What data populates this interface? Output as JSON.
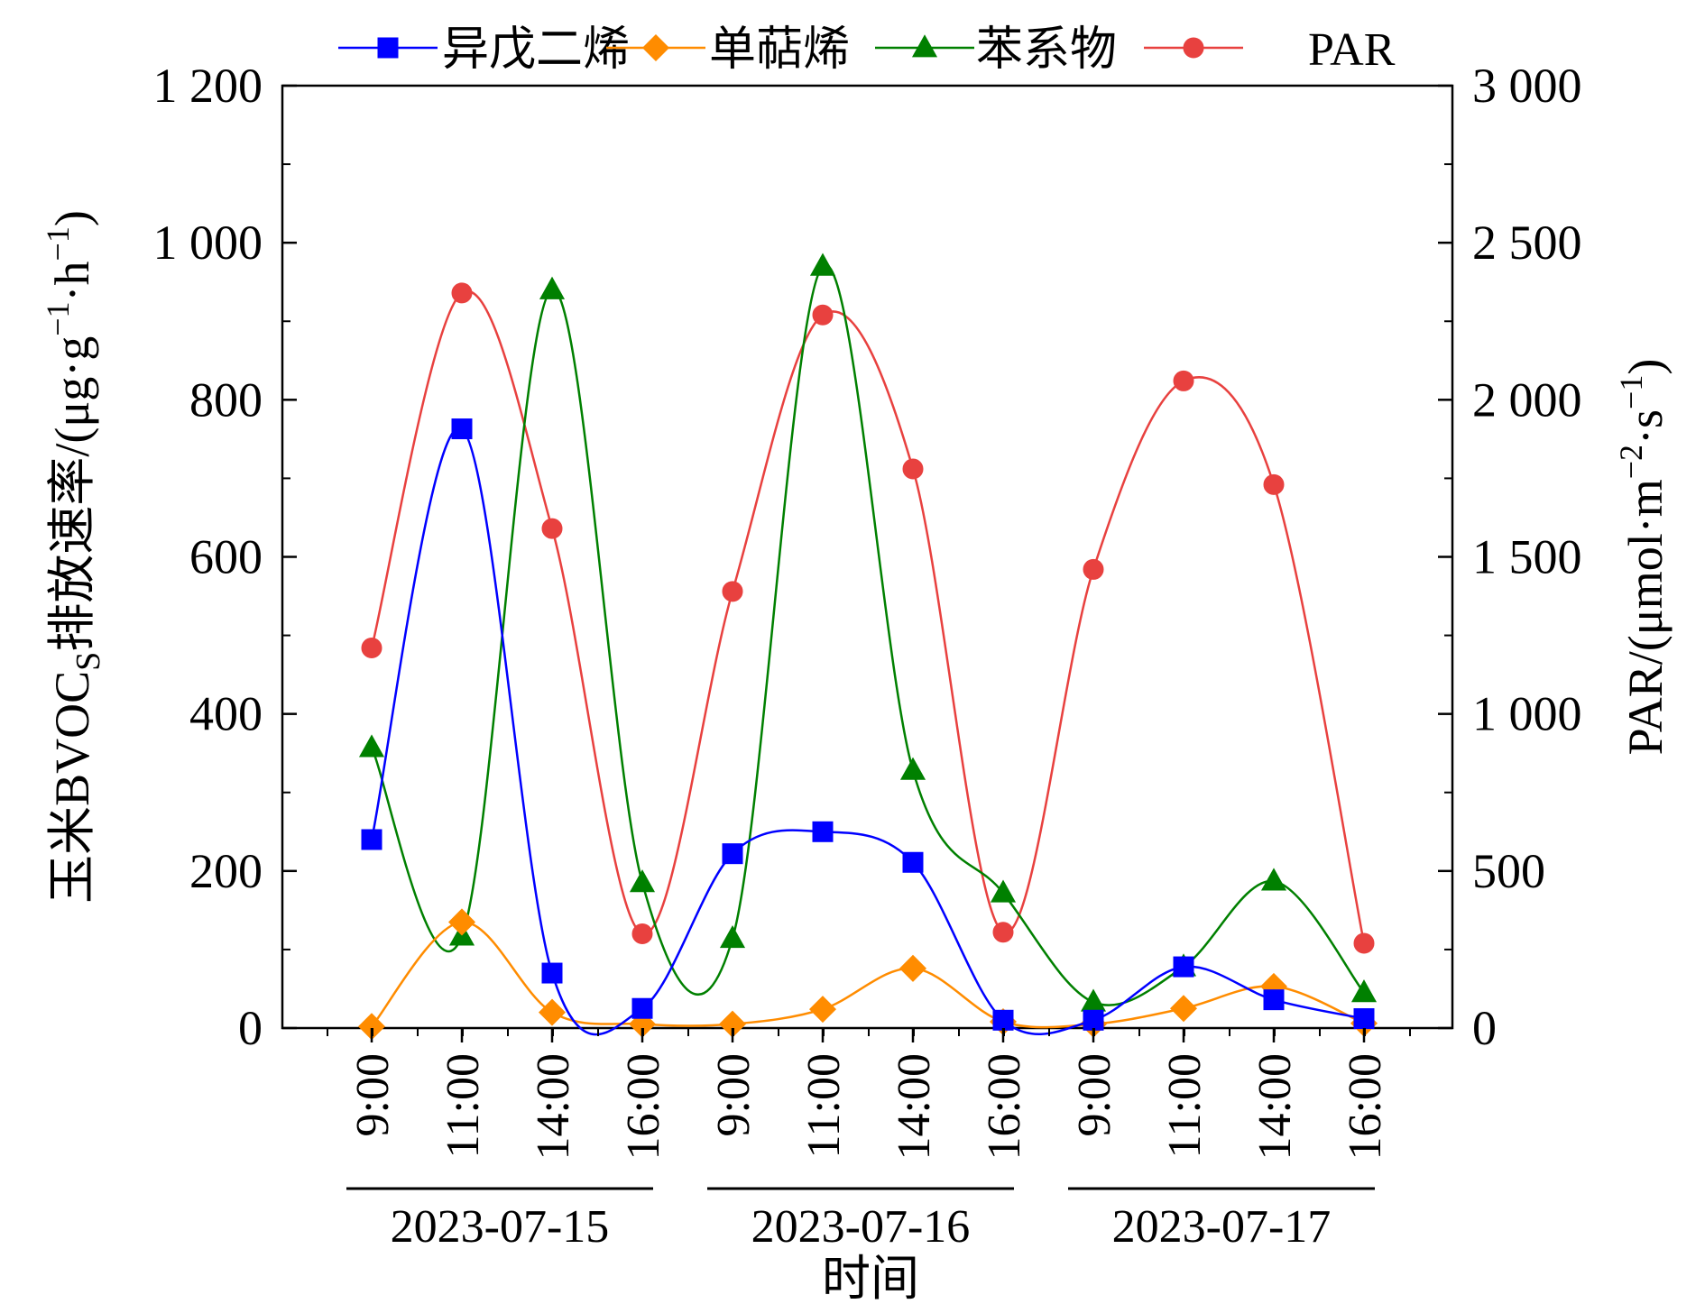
{
  "chart_data": {
    "type": "line",
    "legend_position": "top",
    "grid": false,
    "x_categories": [
      "9:00",
      "11:00",
      "14:00",
      "16:00",
      "9:00",
      "11:00",
      "14:00",
      "16:00",
      "9:00",
      "11:00",
      "14:00",
      "16:00"
    ],
    "date_groups": [
      {
        "label": "2023-07-15",
        "start": 0,
        "end": 3
      },
      {
        "label": "2023-07-16",
        "start": 4,
        "end": 7
      },
      {
        "label": "2023-07-17",
        "start": 8,
        "end": 11
      }
    ],
    "x_title": "时间",
    "y_left": {
      "title": "玉米BVOCs排放速率/(μg·g⁻¹·h⁻¹)",
      "title_parts": {
        "main": "玉米BVOC",
        "sub": "S",
        "rest": "排放速率/(μg·g",
        "sup1": "−1",
        "mid": "·h",
        "sup2": "−1",
        "end": ")"
      },
      "range": [
        0,
        1200
      ],
      "ticks": [
        0,
        200,
        400,
        600,
        800,
        1000,
        1200
      ],
      "tick_labels": [
        "0",
        "200",
        "400",
        "600",
        "800",
        "1 000",
        "1 200"
      ]
    },
    "y_right": {
      "title": "PAR/(μmol·m⁻²·s⁻¹)",
      "title_parts": {
        "main": "PAR/(μmol·m",
        "sup1": "−2",
        "mid": "·s",
        "sup2": "−1",
        "end": ")"
      },
      "range": [
        0,
        3000
      ],
      "ticks": [
        0,
        500,
        1000,
        1500,
        2000,
        2500,
        3000
      ],
      "tick_labels": [
        "0",
        "500",
        "1 000",
        "1 500",
        "2 000",
        "2 500",
        "3 000"
      ]
    },
    "series": [
      {
        "name": "异戊二烯",
        "axis": "left",
        "color": "#0000ff",
        "marker": "square",
        "values": [
          240,
          763,
          70,
          25,
          222,
          250,
          211,
          10,
          10,
          78,
          36,
          12
        ]
      },
      {
        "name": "单萜烯",
        "axis": "left",
        "color": "#ff8c00",
        "marker": "diamond",
        "values": [
          2,
          135,
          20,
          5,
          5,
          24,
          76,
          8,
          5,
          25,
          53,
          6
        ]
      },
      {
        "name": "苯系物",
        "axis": "left",
        "color": "#008000",
        "marker": "triangle",
        "values": [
          357,
          117,
          940,
          185,
          114,
          970,
          328,
          172,
          33,
          78,
          187,
          45
        ]
      },
      {
        "name": "PAR",
        "axis": "right",
        "color": "#e8413f",
        "marker": "circle",
        "values": [
          1210,
          2340,
          1590,
          300,
          1390,
          2270,
          1780,
          305,
          1460,
          2060,
          1730,
          270
        ]
      }
    ]
  }
}
